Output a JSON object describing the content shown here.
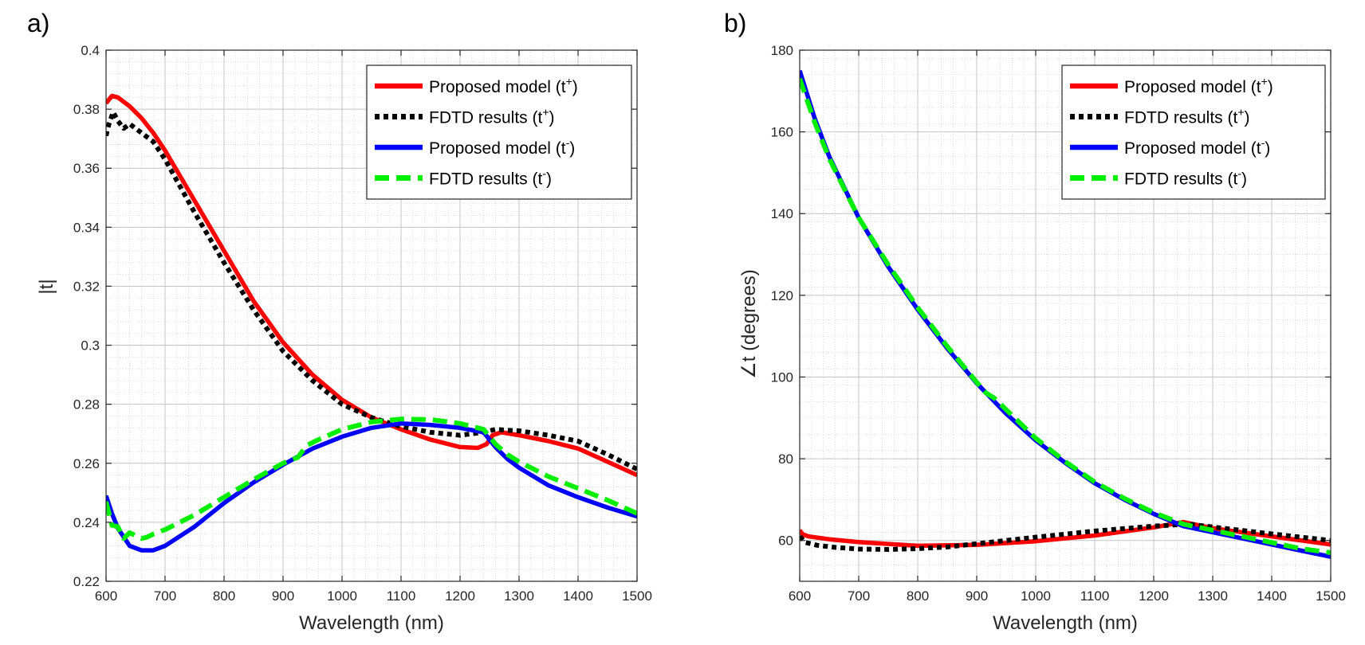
{
  "chart_data": [
    {
      "panel": "a)",
      "type": "line",
      "xlabel": "Wavelength (nm)",
      "ylabel": "|t|",
      "xlim": [
        600,
        1500
      ],
      "ylim": [
        0.22,
        0.4
      ],
      "xticks": [
        600,
        700,
        800,
        900,
        1000,
        1100,
        1200,
        1300,
        1400,
        1500
      ],
      "xtick_labels": [
        "600",
        "700",
        "800",
        "900",
        "1000",
        "1100",
        "1200",
        "1300",
        "1400",
        "1500"
      ],
      "yticks": [
        0.22,
        0.24,
        0.26,
        0.28,
        0.3,
        0.32,
        0.34,
        0.36,
        0.38,
        0.4
      ],
      "ytick_labels": [
        "0.22",
        "0.24",
        "0.26",
        "0.28",
        "0.3",
        "0.32",
        "0.34",
        "0.36",
        "0.38",
        "0.4"
      ],
      "grid": true,
      "legend_position": "top-right",
      "series": [
        {
          "name": "Proposed model (t+)",
          "legend_text": "Proposed model (t",
          "legend_sup": "+",
          "color": "#ff0000",
          "style": "solid",
          "x": [
            600,
            610,
            620,
            640,
            660,
            680,
            700,
            750,
            800,
            850,
            900,
            950,
            1000,
            1050,
            1100,
            1150,
            1200,
            1230,
            1245,
            1255,
            1270,
            1300,
            1350,
            1400,
            1450,
            1500
          ],
          "y": [
            0.382,
            0.3845,
            0.384,
            0.381,
            0.377,
            0.372,
            0.366,
            0.349,
            0.332,
            0.315,
            0.301,
            0.29,
            0.2815,
            0.2755,
            0.2715,
            0.268,
            0.2655,
            0.2652,
            0.2665,
            0.2695,
            0.2705,
            0.2695,
            0.2675,
            0.265,
            0.2605,
            0.256
          ]
        },
        {
          "name": "FDTD results (t+)",
          "legend_text": "FDTD results (t",
          "legend_sup": "+",
          "color": "#000000",
          "style": "dotted",
          "x": [
            600,
            605,
            612,
            620,
            630,
            640,
            650,
            660,
            680,
            700,
            750,
            800,
            850,
            900,
            950,
            1000,
            1050,
            1100,
            1150,
            1200,
            1240,
            1260,
            1280,
            1300,
            1350,
            1400,
            1450,
            1500
          ],
          "y": [
            0.371,
            0.375,
            0.379,
            0.376,
            0.3735,
            0.375,
            0.3735,
            0.372,
            0.369,
            0.363,
            0.345,
            0.328,
            0.312,
            0.298,
            0.288,
            0.28,
            0.2755,
            0.2725,
            0.2705,
            0.2695,
            0.2705,
            0.2715,
            0.2712,
            0.271,
            0.2695,
            0.2675,
            0.263,
            0.258
          ]
        },
        {
          "name": "Proposed model (t-)",
          "legend_text": "Proposed model (t",
          "legend_sup": "-",
          "color": "#0000ff",
          "style": "solid",
          "x": [
            600,
            610,
            620,
            640,
            660,
            680,
            700,
            750,
            800,
            850,
            900,
            950,
            1000,
            1050,
            1100,
            1150,
            1200,
            1240,
            1260,
            1280,
            1300,
            1350,
            1400,
            1450,
            1500
          ],
          "y": [
            0.249,
            0.243,
            0.238,
            0.232,
            0.2305,
            0.2305,
            0.232,
            0.2385,
            0.2465,
            0.2535,
            0.2595,
            0.265,
            0.269,
            0.272,
            0.2735,
            0.273,
            0.272,
            0.2705,
            0.2655,
            0.2615,
            0.2585,
            0.2525,
            0.2485,
            0.245,
            0.242
          ]
        },
        {
          "name": "FDTD results (t-)",
          "legend_text": "FDTD results (t",
          "legend_sup": "-",
          "color": "#00ee00",
          "style": "dashed",
          "x": [
            600,
            610,
            620,
            630,
            640,
            650,
            660,
            670,
            680,
            700,
            750,
            800,
            850,
            900,
            925,
            940,
            960,
            1000,
            1050,
            1100,
            1150,
            1200,
            1240,
            1260,
            1280,
            1300,
            1350,
            1400,
            1450,
            1500
          ],
          "y": [
            0.247,
            0.239,
            0.2385,
            0.2345,
            0.2365,
            0.2355,
            0.2345,
            0.235,
            0.236,
            0.2375,
            0.2425,
            0.2485,
            0.2545,
            0.26,
            0.262,
            0.266,
            0.268,
            0.2715,
            0.274,
            0.275,
            0.2748,
            0.2735,
            0.2715,
            0.2665,
            0.263,
            0.2605,
            0.2555,
            0.2515,
            0.2475,
            0.243
          ]
        }
      ]
    },
    {
      "panel": "b)",
      "type": "line",
      "xlabel": "Wavelength (nm)",
      "ylabel": "∠t (degrees)",
      "xlim": [
        600,
        1500
      ],
      "ylim": [
        50,
        180
      ],
      "xticks": [
        600,
        700,
        800,
        900,
        1000,
        1100,
        1200,
        1300,
        1400,
        1500
      ],
      "xtick_labels": [
        "600",
        "700",
        "800",
        "900",
        "1000",
        "1100",
        "1200",
        "1300",
        "1400",
        "1500"
      ],
      "yticks": [
        60,
        80,
        100,
        120,
        140,
        160,
        180
      ],
      "ytick_labels": [
        "60",
        "80",
        "100",
        "120",
        "140",
        "160",
        "180"
      ],
      "grid": true,
      "legend_position": "top-right",
      "series": [
        {
          "name": "Proposed model (t+)",
          "legend_text": "Proposed model (t",
          "legend_sup": "+",
          "color": "#ff0000",
          "style": "solid",
          "x": [
            600,
            605,
            615,
            650,
            700,
            800,
            900,
            1000,
            1100,
            1200,
            1250,
            1300,
            1400,
            1500
          ],
          "y": [
            62.5,
            61.5,
            61,
            60.3,
            59.6,
            58.7,
            58.9,
            59.8,
            61.2,
            63.2,
            64.5,
            63,
            61,
            59
          ]
        },
        {
          "name": "FDTD results (t+)",
          "legend_text": "FDTD results (t",
          "legend_sup": "+",
          "color": "#000000",
          "style": "dotted",
          "x": [
            600,
            610,
            630,
            660,
            700,
            750,
            800,
            850,
            900,
            1000,
            1100,
            1200,
            1260,
            1300,
            1400,
            1500
          ],
          "y": [
            61,
            59.5,
            58.8,
            58.3,
            57.9,
            57.8,
            58,
            58.4,
            59.2,
            60.8,
            62.3,
            63.5,
            64,
            63.3,
            61.6,
            60
          ]
        },
        {
          "name": "Proposed model (t-)",
          "legend_text": "Proposed model (t",
          "legend_sup": "-",
          "color": "#0000ff",
          "style": "solid",
          "x": [
            600,
            625,
            650,
            700,
            750,
            800,
            850,
            900,
            950,
            1000,
            1050,
            1100,
            1150,
            1200,
            1250,
            1300,
            1350,
            1400,
            1450,
            1500
          ],
          "y": [
            175,
            163.5,
            154,
            139,
            127,
            116.5,
            107,
            98.5,
            91,
            84.5,
            79,
            74,
            70,
            66.5,
            63.5,
            62,
            60.5,
            59,
            57.5,
            56
          ]
        },
        {
          "name": "FDTD results (t-)",
          "legend_text": "FDTD results (t",
          "legend_sup": "-",
          "color": "#00ee00",
          "style": "dashed",
          "x": [
            600,
            625,
            650,
            700,
            750,
            800,
            850,
            900,
            915,
            930,
            950,
            1000,
            1050,
            1100,
            1150,
            1200,
            1250,
            1300,
            1350,
            1400,
            1450,
            1500
          ],
          "y": [
            173,
            162.5,
            153.5,
            139,
            127.5,
            117,
            107.5,
            98.7,
            96.2,
            94.8,
            92,
            85,
            79.3,
            74.3,
            70.3,
            66.8,
            64,
            62.5,
            61,
            59.5,
            58,
            57
          ]
        }
      ]
    }
  ]
}
